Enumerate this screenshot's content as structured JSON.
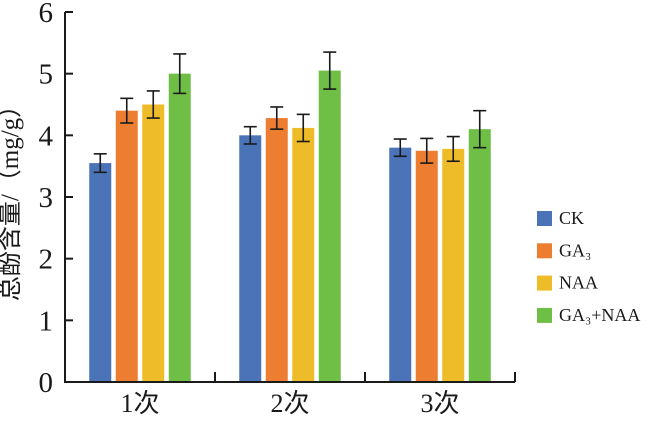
{
  "figure": {
    "background": "#ffffff",
    "axis_color": "#1a1a1a",
    "error_bar_color": "#1a1a1a"
  },
  "chart_data": {
    "type": "bar",
    "title": "",
    "xlabel": "",
    "ylabel": "总酚含量/（mg/g）",
    "categories": [
      "1次",
      "2次",
      "3次"
    ],
    "series": [
      {
        "name": "CK",
        "color": "#4B73B8",
        "values": [
          3.55,
          4.0,
          3.8
        ],
        "errors": [
          0.15,
          0.14,
          0.14
        ]
      },
      {
        "name": "GA₃",
        "color": "#ED7D31",
        "values": [
          4.4,
          4.28,
          3.75
        ],
        "errors": [
          0.2,
          0.18,
          0.2
        ]
      },
      {
        "name": "NAA",
        "color": "#EFBC29",
        "values": [
          4.5,
          4.12,
          3.78
        ],
        "errors": [
          0.22,
          0.22,
          0.2
        ]
      },
      {
        "name": "GA₃+NAA",
        "color": "#6FBE45",
        "values": [
          5.0,
          5.05,
          4.1
        ],
        "errors": [
          0.32,
          0.3,
          0.3
        ]
      }
    ],
    "ylim": [
      0,
      6
    ],
    "ytick_step": 1,
    "yticks": [
      "0",
      "1",
      "2",
      "3",
      "4",
      "5",
      "6"
    ],
    "grid": false,
    "error_bars": true,
    "legend_position": "right"
  }
}
